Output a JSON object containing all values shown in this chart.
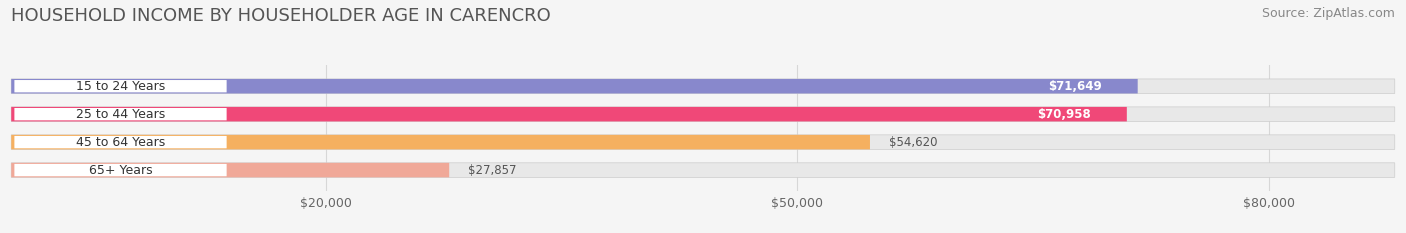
{
  "title": "HOUSEHOLD INCOME BY HOUSEHOLDER AGE IN CARENCRO",
  "source": "Source: ZipAtlas.com",
  "categories": [
    "15 to 24 Years",
    "25 to 44 Years",
    "45 to 64 Years",
    "65+ Years"
  ],
  "values": [
    71649,
    70958,
    54620,
    27857
  ],
  "bar_colors": [
    "#8888cc",
    "#f04878",
    "#f5b060",
    "#f0a898"
  ],
  "bar_bg_color": "#e8e8e8",
  "value_labels": [
    "$71,649",
    "$70,958",
    "$54,620",
    "$27,857"
  ],
  "value_inside": [
    true,
    true,
    false,
    false
  ],
  "xticks": [
    20000,
    50000,
    80000
  ],
  "xtick_labels": [
    "$20,000",
    "$50,000",
    "$80,000"
  ],
  "xlim": [
    0,
    88000
  ],
  "title_fontsize": 13,
  "source_fontsize": 9,
  "label_fontsize": 9,
  "value_fontsize": 8.5,
  "background_color": "#f5f5f5"
}
